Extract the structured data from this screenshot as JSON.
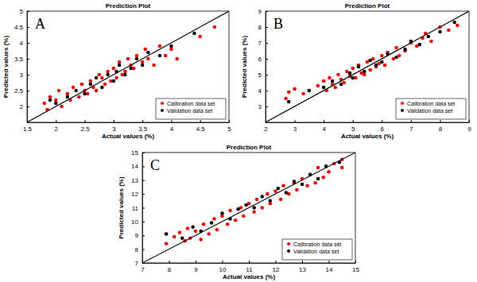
{
  "chart_data": [
    {
      "type": "scatter",
      "title": "Prediction Plot",
      "x_label": "Actual values (%)",
      "y_label": "Predicted values (%)",
      "annotations": [
        "A"
      ],
      "xlim": [
        1.5,
        5
      ],
      "xticks": [
        1.5,
        2,
        2.5,
        3,
        3.5,
        4,
        4.5,
        5
      ],
      "ylim": [
        1.5,
        5
      ],
      "yticks": [
        2,
        2.5,
        3,
        3.5,
        4,
        4.5,
        5
      ],
      "grid": false,
      "legend": "lower right",
      "series": [
        {
          "name": "Calibration data set",
          "color": "#ff0000",
          "marker": "circle",
          "x": [
            1.8,
            1.85,
            1.9,
            2.0,
            2.05,
            2.1,
            2.2,
            2.25,
            2.3,
            2.4,
            2.45,
            2.5,
            2.55,
            2.6,
            2.65,
            2.7,
            2.75,
            2.8,
            2.85,
            2.9,
            2.95,
            3.0,
            3.05,
            3.1,
            3.15,
            3.2,
            3.25,
            3.3,
            3.35,
            3.4,
            3.5,
            3.55,
            3.6,
            3.7,
            3.8,
            3.9,
            4.0,
            4.1,
            4.5,
            4.75
          ],
          "values": [
            2.1,
            1.9,
            2.3,
            2.2,
            2.5,
            2.0,
            2.4,
            2.2,
            2.6,
            2.3,
            2.7,
            2.5,
            2.4,
            2.8,
            2.6,
            2.5,
            3.0,
            2.9,
            2.7,
            3.1,
            2.8,
            3.2,
            2.9,
            3.4,
            3.0,
            3.1,
            3.5,
            3.3,
            3.2,
            3.6,
            3.4,
            3.8,
            3.5,
            3.3,
            3.9,
            3.6,
            3.8,
            3.5,
            4.2,
            4.5
          ]
        },
        {
          "name": "Validation data set",
          "color": "#000000",
          "marker": "circle",
          "x": [
            1.9,
            2.0,
            2.2,
            2.35,
            2.5,
            2.6,
            2.7,
            2.8,
            2.9,
            3.0,
            3.05,
            3.1,
            3.2,
            3.3,
            3.4,
            3.5,
            3.6,
            3.8,
            4.0,
            4.4
          ],
          "values": [
            2.2,
            2.1,
            2.3,
            2.5,
            2.4,
            2.7,
            2.9,
            2.6,
            3.0,
            2.8,
            3.1,
            3.3,
            3.0,
            3.2,
            3.5,
            3.3,
            3.7,
            3.6,
            3.9,
            4.3
          ]
        },
        {
          "type": "line",
          "color": "#000000",
          "line_style": "solid",
          "x": [
            1.5,
            5
          ],
          "values": [
            1.5,
            5
          ]
        }
      ]
    },
    {
      "type": "scatter",
      "title": "Prediction Plot",
      "x_label": "Actual values (%)",
      "y_label": "Predicted values (%)",
      "annotations": [
        "B"
      ],
      "xlim": [
        2,
        9
      ],
      "xticks": [
        2,
        3,
        4,
        5,
        6,
        7,
        8,
        9
      ],
      "ylim": [
        2,
        9
      ],
      "yticks": [
        3,
        4,
        5,
        6,
        7,
        8,
        9
      ],
      "grid": false,
      "legend": "lower right",
      "series": [
        {
          "name": "Calibration data set",
          "color": "#ff0000",
          "marker": "circle",
          "x": [
            2.7,
            2.8,
            3.0,
            3.3,
            3.8,
            4.0,
            4.1,
            4.2,
            4.3,
            4.4,
            4.5,
            4.6,
            4.7,
            4.8,
            4.9,
            5.0,
            5.1,
            5.2,
            5.3,
            5.4,
            5.5,
            5.6,
            5.7,
            5.8,
            5.9,
            6.0,
            6.1,
            6.2,
            6.4,
            6.5,
            6.6,
            6.8,
            7.0,
            7.2,
            7.4,
            7.5,
            7.7,
            8.0,
            8.3,
            8.6
          ],
          "values": [
            3.5,
            3.9,
            4.1,
            3.8,
            4.3,
            4.6,
            4.0,
            4.8,
            4.4,
            4.2,
            5.0,
            4.7,
            4.5,
            5.2,
            4.9,
            5.4,
            4.8,
            5.6,
            5.1,
            5.0,
            5.8,
            5.3,
            6.0,
            5.5,
            5.7,
            6.2,
            5.6,
            6.4,
            6.0,
            6.7,
            6.2,
            6.5,
            7.0,
            6.8,
            7.3,
            7.6,
            7.1,
            8.0,
            7.8,
            8.1
          ]
        },
        {
          "name": "Validation data set",
          "color": "#000000",
          "marker": "circle",
          "x": [
            2.8,
            3.5,
            4.0,
            4.3,
            4.6,
            4.9,
            5.0,
            5.2,
            5.4,
            5.6,
            5.8,
            6.0,
            6.2,
            6.5,
            6.8,
            7.0,
            7.3,
            7.6,
            8.0,
            8.5
          ],
          "values": [
            3.3,
            4.0,
            4.2,
            4.6,
            4.4,
            5.1,
            4.8,
            5.5,
            5.2,
            5.9,
            5.6,
            5.8,
            6.3,
            6.1,
            6.6,
            7.1,
            6.9,
            7.4,
            7.7,
            8.3
          ]
        },
        {
          "type": "line",
          "color": "#000000",
          "line_style": "solid",
          "x": [
            2,
            9
          ],
          "values": [
            2,
            9
          ]
        }
      ]
    },
    {
      "type": "scatter",
      "title": "Prediction Plot",
      "x_label": "Actual values (%)",
      "y_label": "Predicted values (%)",
      "annotations": [
        "C"
      ],
      "xlim": [
        7,
        15
      ],
      "xticks": [
        7,
        8,
        9,
        10,
        11,
        12,
        13,
        14,
        15
      ],
      "ylim": [
        7,
        15
      ],
      "yticks": [
        7,
        8,
        9,
        10,
        11,
        12,
        13,
        14,
        15
      ],
      "grid": false,
      "legend": "lower right",
      "series": [
        {
          "name": "Calibration data set",
          "color": "#ff0000",
          "marker": "circle",
          "x": [
            7.9,
            8.2,
            8.4,
            8.6,
            8.7,
            8.8,
            9.0,
            9.2,
            9.3,
            9.5,
            9.7,
            9.8,
            10.0,
            10.2,
            10.3,
            10.5,
            10.7,
            10.8,
            11.0,
            11.2,
            11.3,
            11.5,
            11.7,
            11.8,
            12.0,
            12.2,
            12.3,
            12.5,
            12.7,
            12.8,
            13.0,
            13.2,
            13.3,
            13.5,
            13.6,
            13.8,
            14.0,
            14.2,
            14.5,
            14.5
          ],
          "values": [
            8.4,
            8.9,
            9.2,
            8.6,
            9.5,
            8.8,
            9.3,
            8.7,
            9.8,
            9.1,
            10.2,
            9.4,
            10.4,
            9.8,
            10.8,
            10.1,
            11.0,
            10.4,
            11.3,
            10.7,
            11.6,
            11.0,
            12.0,
            11.3,
            12.2,
            11.6,
            12.6,
            12.0,
            12.8,
            12.3,
            13.1,
            12.6,
            13.4,
            12.8,
            13.9,
            13.2,
            13.6,
            14.2,
            14.5,
            13.9
          ]
        },
        {
          "name": "Validation data set",
          "color": "#000000",
          "marker": "circle",
          "x": [
            7.9,
            8.5,
            8.9,
            9.2,
            9.6,
            10.0,
            10.3,
            10.6,
            10.9,
            11.2,
            11.5,
            11.8,
            12.1,
            12.4,
            12.7,
            13.0,
            13.3,
            13.6,
            13.9,
            14.4
          ],
          "values": [
            9.1,
            8.8,
            9.6,
            9.3,
            9.9,
            10.6,
            10.2,
            10.9,
            11.2,
            11.0,
            11.8,
            11.5,
            12.4,
            12.1,
            12.9,
            12.7,
            13.4,
            13.1,
            14.0,
            14.3
          ]
        },
        {
          "type": "line",
          "color": "#000000",
          "line_style": "solid",
          "x": [
            7,
            15
          ],
          "values": [
            7,
            15
          ]
        }
      ]
    }
  ]
}
